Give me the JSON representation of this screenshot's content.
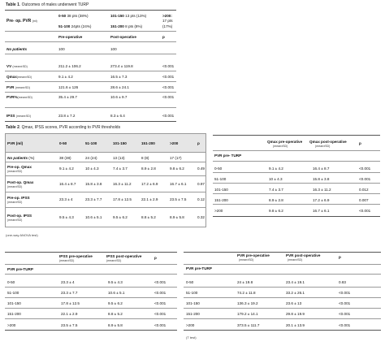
{
  "t1": {
    "caption_bold": "Table 1",
    "caption_text": ". Outcomes of males underwent TURP",
    "preop_pvr_label": "Pre- op. PVR",
    "preop_pvr_unit": "(ml)",
    "groups": [
      {
        "range": "0-50",
        "text": "38 pts (38%)"
      },
      {
        "range": "101-150",
        "text": "13 pts (13%)"
      },
      {
        "range": ">200:",
        "text": "17 pts"
      },
      {
        "range": "51-100",
        "text": "24pts (24%)"
      },
      {
        "range": "151-200",
        "text": "8 pts (8%)"
      },
      {
        "range": "",
        "text": "(17%)"
      }
    ],
    "headers": [
      "Pre-operative",
      "Post-operative",
      "p"
    ],
    "rows": [
      {
        "label": "No patients",
        "pre": "100",
        "post": "100",
        "p": ""
      },
      {
        "label": "VV",
        "unit": "(mean±SD)",
        "pre": "211.2 ± 106.2",
        "post": "273.4 ± 119.8",
        "p": "<0.001"
      },
      {
        "label": "Qmax",
        "unit": "(mean±SD)",
        "pre": "9.1 ± 4.2",
        "post": "16.5 ± 7.3",
        "p": "<0.001"
      },
      {
        "label": "PVR",
        "unit": "(mean±SD)",
        "pre": "121.6 ± 126",
        "post": "28.6 ± 24.1",
        "p": "<0.001"
      },
      {
        "label": "PVR%",
        "unit": "(mean±SD)",
        "pre": "35.4 ± 29.7",
        "post": "10.6 ± 9.7",
        "p": "<0.001"
      },
      {
        "label": "IPSS",
        "unit": "(mean±SD)",
        "pre": "23.8 ± 7.2",
        "post": "8.3 ± 6.4",
        "p": "<0.001"
      }
    ]
  },
  "t2": {
    "caption_bold": "Table 2",
    "caption_text": ". Qmax, IPSS scores, PVR according to PVR thresholds",
    "headers": [
      "PVR (ml)",
      "0-50",
      "51-100",
      "101-150",
      "151-200",
      ">200",
      "p"
    ],
    "rows": [
      {
        "label": "No patients",
        "unit": "(%)",
        "vals": [
          "38 (38)",
          "24 (24)",
          "13 (13)",
          "8 (8)",
          "17 (17)"
        ],
        "p": ""
      },
      {
        "label": "Pre-op. Qmax",
        "unit": "(mean±SD)",
        "vals": [
          "9.1 ± 4.2",
          "10 ± 4.3",
          "7.4 ± 3.7",
          "8.9 ± 2.8",
          "9.8 ± 6.2"
        ],
        "p": "0.49"
      },
      {
        "label": "Post-op. Qmax",
        "unit": "(mean±SD)",
        "vals": [
          "16.4 ± 8.7",
          "15.8 ± 3.8",
          "16.3 ± 11.2",
          "17.2 ± 6.9",
          "16.7 ± 6.1"
        ],
        "p": "0.97"
      },
      {
        "label": "Pre-op. IPSS",
        "unit": "(mean±SD)",
        "vals": [
          "23.3 ± 4",
          "23.3 ± 7.7",
          "17.8 ± 12.5",
          "22.1 ± 2.9",
          "23.5 ± 7.5"
        ],
        "p": "0.12"
      },
      {
        "label": "Post-op. IPSS",
        "unit": "(mean±SD)",
        "vals": [
          "9.5 ± 4.3",
          "10.6 ± 5.1",
          "9.5 ± 6.2",
          "8.8 ± 5.2",
          "8.9 ± 5.8"
        ],
        "p": "0.32"
      }
    ],
    "footnote": "(one-way ANOVA test)"
  },
  "t3": {
    "headers": [
      "PVR pre- TURP",
      "Qmax pre-operative",
      "Qmax post-operative",
      "p"
    ],
    "sub": "(mean±SD)",
    "rows": [
      {
        "label": "0-50",
        "pre": "9.1 ± 4.2",
        "post": "16.4 ± 8.7",
        "p": "<0.001"
      },
      {
        "label": "51-100",
        "pre": "10 ± 4.3",
        "post": "15.8 ± 3.8",
        "p": "<0.001"
      },
      {
        "label": "101-150",
        "pre": "7.4 ± 3.7",
        "post": "16.3 ± 11.2",
        "p": "0.012"
      },
      {
        "label": "151-200",
        "pre": "8.9 ± 2.8",
        "post": "17.2 ± 6.9",
        "p": "0.007"
      },
      {
        "label": ">200",
        "pre": "9.8 ± 6.2",
        "post": "16.7 ± 6.1",
        "p": "<0.001"
      }
    ]
  },
  "t4": {
    "headers": [
      "PVR pre-TURP",
      "IPSS pre-operative",
      "IPSS post-operative",
      "p"
    ],
    "sub": "(mean±SD)",
    "rows": [
      {
        "label": "0-50",
        "pre": "23.3 ± 4",
        "post": "9.5 ± 4.3",
        "p": "<0.001"
      },
      {
        "label": "51-100",
        "pre": "23.3 ± 7.7",
        "post": "10.6 ± 5.1",
        "p": "<0.001"
      },
      {
        "label": "101-150",
        "pre": "17.8 ± 12.5",
        "post": "9.5 ± 6.2",
        "p": "<0.001"
      },
      {
        "label": "151-200",
        "pre": "22.1 ± 2.9",
        "post": "8.8 ± 5.2",
        "p": "<0.001"
      },
      {
        "label": ">200",
        "pre": "23.5 ± 7.5",
        "post": "8.9 ± 5.8",
        "p": "<0.001"
      }
    ]
  },
  "t5": {
    "headers": [
      "PVR pre-TURP",
      "PVR pre-operative",
      "PVR post-operative",
      "p"
    ],
    "sub": "(mean±SD)",
    "rows": [
      {
        "label": "0-50",
        "pre": "24 ± 19.8",
        "post": "23.4 ± 19.1",
        "p": "0.83"
      },
      {
        "label": "51-100",
        "pre": "74.2 ± 11.8",
        "post": "33.2 ± 26.1",
        "p": "<0.001"
      },
      {
        "label": "101-150",
        "pre": "136.3 ± 19.2",
        "post": "23.6 ± 13",
        "p": "<0.001"
      },
      {
        "label": "151-200",
        "pre": "179.2 ± 14.1",
        "post": "29.8 ± 19.9",
        "p": "<0.001"
      },
      {
        "label": ">200",
        "pre": "373.5 ± 111.7",
        "post": "20.1 ± 13.9",
        "p": "<0.001"
      }
    ],
    "footnote": "(T test)"
  }
}
